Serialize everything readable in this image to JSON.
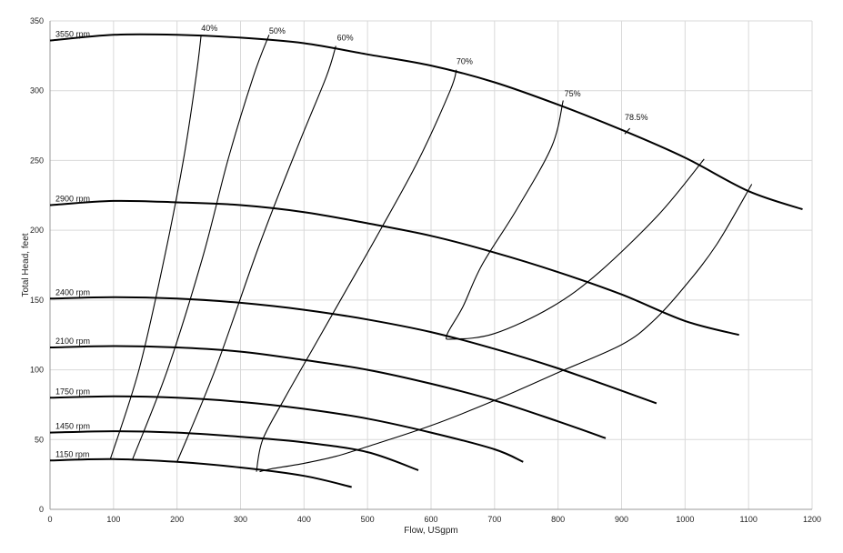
{
  "chart_data": {
    "type": "line",
    "title": "",
    "xlabel": "Flow, USgpm",
    "ylabel": "Total Head, feet",
    "xlim": [
      0,
      1200
    ],
    "ylim": [
      0,
      350
    ],
    "xticks": [
      0,
      100,
      200,
      300,
      400,
      500,
      600,
      700,
      800,
      900,
      1000,
      1100,
      1200
    ],
    "yticks": [
      0,
      50,
      100,
      150,
      200,
      250,
      300,
      350
    ],
    "grid": true,
    "legend": "none",
    "speed_curves": [
      {
        "name": "3550 rpm",
        "x": [
          0,
          100,
          200,
          300,
          400,
          500,
          600,
          700,
          800,
          900,
          1000,
          1100,
          1185
        ],
        "y": [
          336,
          340,
          340,
          338,
          334,
          326,
          318,
          306,
          290,
          272,
          252,
          228,
          215
        ]
      },
      {
        "name": "2900 rpm",
        "x": [
          0,
          100,
          200,
          300,
          400,
          500,
          600,
          700,
          800,
          900,
          1000,
          1085
        ],
        "y": [
          218,
          221,
          220,
          218,
          213,
          205,
          196,
          184,
          170,
          154,
          135,
          125
        ]
      },
      {
        "name": "2400 rpm",
        "x": [
          0,
          100,
          200,
          300,
          400,
          500,
          600,
          700,
          800,
          900,
          955
        ],
        "y": [
          151,
          152,
          151,
          148,
          143,
          136,
          127,
          115,
          101,
          85,
          76
        ]
      },
      {
        "name": "2100 rpm",
        "x": [
          0,
          100,
          200,
          300,
          400,
          500,
          600,
          700,
          800,
          875
        ],
        "y": [
          116,
          117,
          116,
          113,
          107,
          100,
          90,
          78,
          63,
          51
        ]
      },
      {
        "name": "1750 rpm",
        "x": [
          0,
          100,
          200,
          300,
          400,
          500,
          600,
          700,
          745
        ],
        "y": [
          80,
          81,
          80,
          77,
          72,
          65,
          55,
          43,
          34
        ]
      },
      {
        "name": "1450 rpm",
        "x": [
          0,
          100,
          200,
          300,
          400,
          500,
          580
        ],
        "y": [
          55,
          56,
          55,
          52,
          48,
          41,
          28
        ]
      },
      {
        "name": "1150 rpm",
        "x": [
          0,
          100,
          200,
          300,
          400,
          475
        ],
        "y": [
          35,
          36,
          34,
          30,
          24,
          16
        ]
      }
    ],
    "efficiency_curves": [
      {
        "name": "40%",
        "x": [
          95,
          140,
          180,
          210,
          230,
          238
        ],
        "y": [
          36,
          100,
          180,
          250,
          310,
          340
        ]
      },
      {
        "name": "50%",
        "x": [
          130,
          185,
          240,
          280,
          320,
          345
        ],
        "y": [
          36,
          100,
          180,
          250,
          310,
          340
        ]
      },
      {
        "name": "60%",
        "x": [
          200,
          260,
          330,
          390,
          435,
          450
        ],
        "y": [
          34,
          100,
          190,
          260,
          310,
          332
        ]
      },
      {
        "name": "70%",
        "x": [
          325,
          335,
          370,
          420,
          470,
          520,
          580,
          630,
          640
        ],
        "y": [
          27,
          50,
          80,
          120,
          160,
          200,
          250,
          300,
          315
        ]
      },
      {
        "name": "75%",
        "x": [
          808,
          790,
          735,
          680,
          650,
          625,
          635,
          700,
          790,
          865,
          960,
          1030
        ],
        "y": [
          293,
          260,
          215,
          175,
          145,
          125,
          122,
          126,
          145,
          170,
          212,
          251
        ]
      },
      {
        "name": "78.5%",
        "x": [
          1105,
          1050,
          1000,
          950,
          900,
          800,
          700,
          600,
          500,
          450,
          400,
          348,
          330
        ],
        "y": [
          233,
          190,
          160,
          135,
          118,
          98,
          78,
          60,
          45,
          38,
          33,
          29,
          27
        ]
      },
      {
        "name": "78.5% end",
        "x": [
          905,
          913
        ],
        "y": [
          269,
          273
        ]
      }
    ],
    "efficiency_labels": [
      {
        "text": "40%",
        "x": 238,
        "y": 341
      },
      {
        "text": "50%",
        "x": 345,
        "y": 339
      },
      {
        "text": "60%",
        "x": 452,
        "y": 334
      },
      {
        "text": "70%",
        "x": 640,
        "y": 317
      },
      {
        "text": "75%",
        "x": 810,
        "y": 294
      },
      {
        "text": "78.5%",
        "x": 905,
        "y": 277
      }
    ]
  }
}
